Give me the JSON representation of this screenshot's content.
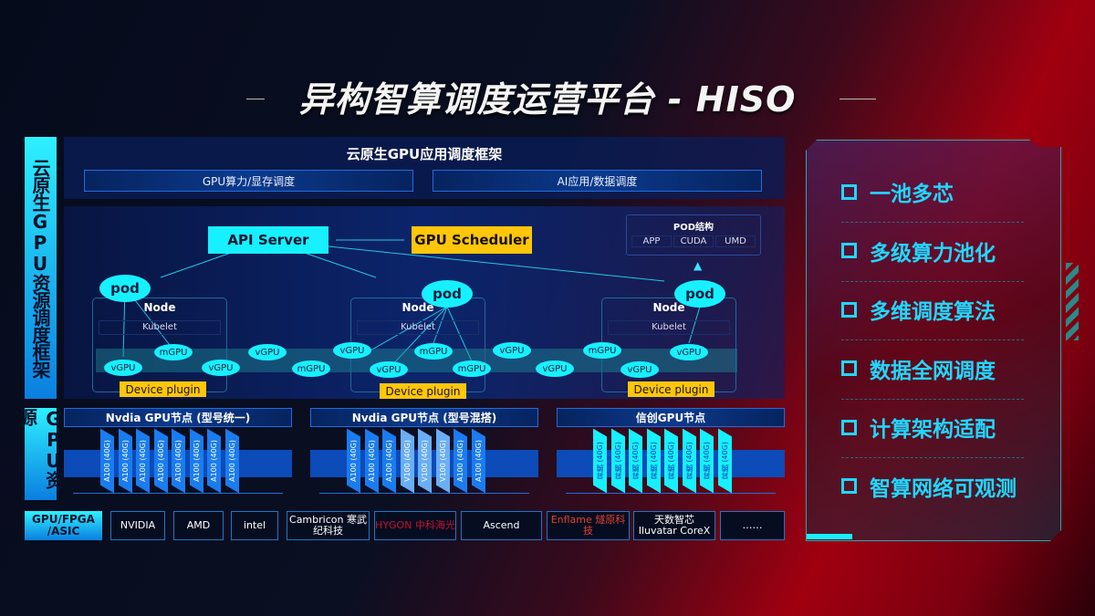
{
  "title": "异构智算调度运营平台 - HISO",
  "side_labels": {
    "framework": "云原生GPU资源调度框架",
    "resources": "GPU资源",
    "hw": "GPU/FPGA /ASIC"
  },
  "app_framework": {
    "title": "云原生GPU应用调度框架",
    "boxes": [
      "GPU算力/显存调度",
      "AI应用/数据调度"
    ]
  },
  "scheduling": {
    "api_server": "API Server",
    "gpu_scheduler": "GPU Scheduler",
    "pod_structure": {
      "title": "POD结构",
      "items": [
        "APP",
        "CUDA",
        "UMD"
      ]
    },
    "pod": "pod",
    "node": "Node",
    "kubelet": "Kubelet",
    "device_plugin": "Device plugin",
    "units": [
      "vGPU",
      "mGPU",
      "vGPU",
      "vGPU",
      "mGPU",
      "vGPU",
      "vGPU",
      "mGPU",
      "mGPU",
      "vGPU",
      "vGPU",
      "mGPU",
      "vGPU",
      "vGPU"
    ]
  },
  "gpu_nodes": [
    {
      "title": "Nvdia GPU节点 (型号统一)",
      "cards": [
        "A100 (40G)",
        "A100 (40G)",
        "A100 (40G)",
        "A100 (40G)",
        "A100 (40G)",
        "A100 (40G)",
        "A100 (40G)",
        "A100 (40G)"
      ]
    },
    {
      "title": "Nvdia GPU节点 (型号混搭)",
      "cards": [
        "A100 (40G)",
        "A100 (40G)",
        "A100 (40G)",
        "V100 (40G)",
        "V100 (40G)",
        "V100 (40G)",
        "A100 (40G)",
        "A100 (40G)"
      ]
    },
    {
      "title": "信创GPU节点",
      "cards": [
        "昇腾 (40G)",
        "昇腾 (40G)",
        "昇腾 (40G)",
        "昇腾 (40G)",
        "昇腾 (40G)",
        "昇腾 (40G)",
        "昇腾 (40G)",
        "昇腾 (40G)"
      ]
    }
  ],
  "vendors": [
    "NVIDIA",
    "AMD",
    "intel",
    "Cambricon 寒武纪科技",
    "HYGON 中科海光",
    "Ascend",
    "Enflame 燧原科技",
    "天数智芯 Iluvatar CoreX",
    "……"
  ],
  "features": [
    "一池多芯",
    "多级算力池化",
    "多维调度算法",
    "数据全网调度",
    "计算架构适配",
    "智算网络可观测"
  ],
  "colors": {
    "cyan": "#17f0ff",
    "yellow": "#ffc60a",
    "card_a100": "#1a7cf0",
    "card_v100": "#6aaef5",
    "card_ascend": "#17f0ff"
  }
}
